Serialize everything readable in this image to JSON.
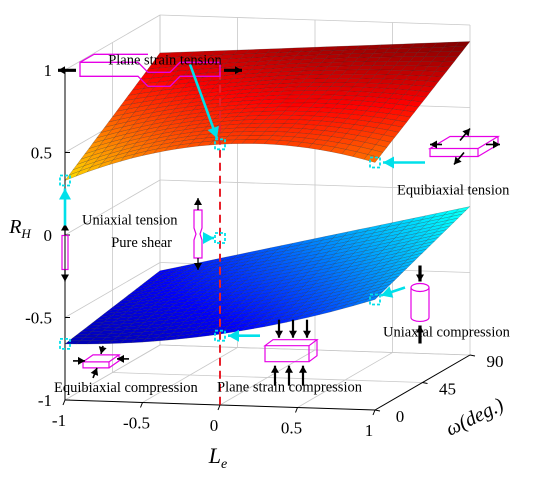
{
  "chart_data": {
    "type": "surface",
    "axes": {
      "x": {
        "label": "L",
        "label_sub": "e",
        "ticks": [
          "-1",
          "-0.5",
          "0",
          "0.5",
          "1"
        ],
        "range": [
          -1,
          1
        ]
      },
      "y": {
        "label": "ω(deg.)",
        "ticks": [
          "0",
          "45",
          "90"
        ],
        "range": [
          0,
          90
        ]
      },
      "z": {
        "label": "R",
        "label_sub": "H",
        "ticks": [
          "1",
          "0.5",
          "0",
          "-0.5",
          "-1"
        ],
        "range": [
          -1,
          1
        ]
      }
    },
    "grid": true,
    "colormap": "jet",
    "surfaces": [
      {
        "edge_points": [
          {
            "Le": -1,
            "omega": 0,
            "RH": 0.33
          },
          {
            "Le": 0,
            "omega": 0,
            "RH": 0.58
          },
          {
            "Le": 1,
            "omega": 0,
            "RH": 0.5
          },
          {
            "Le": -1,
            "omega": 90,
            "RH": 0.77
          },
          {
            "Le": 1,
            "omega": 90,
            "RH": 0.9
          }
        ]
      },
      {
        "edge_points": [
          {
            "Le": -1,
            "omega": 0,
            "RH": -0.66
          },
          {
            "Le": 0,
            "omega": 0,
            "RH": -0.57
          },
          {
            "Le": 1,
            "omega": 0,
            "RH": -0.33
          },
          {
            "Le": -1,
            "omega": 90,
            "RH": -0.55
          },
          {
            "Le": 1,
            "omega": 90,
            "RH": -0.1
          }
        ]
      }
    ],
    "annotations": [
      {
        "text": "Plane strain tension",
        "Le": 0,
        "RH": 0.58
      },
      {
        "text": "Equibiaxial tension",
        "Le": 1,
        "RH": 0.5
      },
      {
        "text": "Uniaxial tension",
        "Le": -1,
        "RH": 0.33
      },
      {
        "text": "Pure shear",
        "Le": 0,
        "RH": 0
      },
      {
        "text": "Uniaxial compression",
        "Le": 1,
        "RH": -0.33
      },
      {
        "text": "Plane strain compression",
        "Le": 0,
        "RH": -0.58
      },
      {
        "text": "Equibiaxial compression",
        "Le": -1,
        "RH": -0.66
      }
    ],
    "reference_line": {
      "Le": 0,
      "style": "dashed",
      "color": "#e8202a"
    }
  },
  "colors": {
    "marker": "#00e0ea",
    "glyph": "#e600e6",
    "refline": "#e8202a",
    "grid": "#c8c8c8"
  }
}
